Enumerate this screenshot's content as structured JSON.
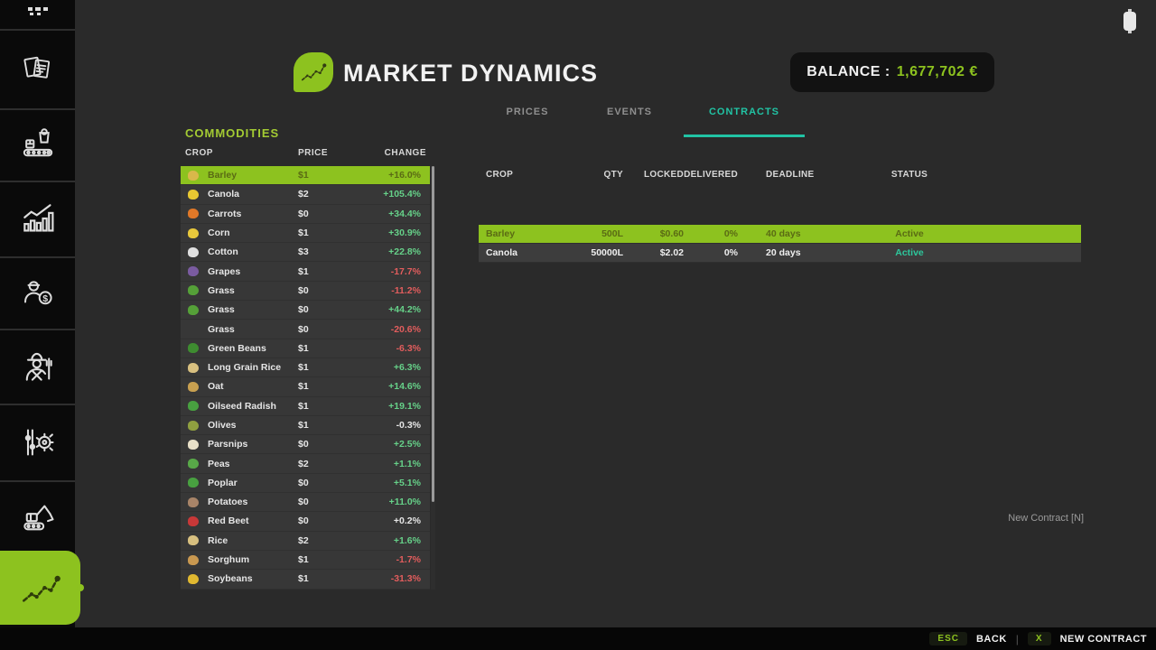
{
  "header": {
    "title": "MARKET DYNAMICS",
    "logo_icon": "leaf-chart-logo-icon",
    "balance_label": "BALANCE :",
    "balance_value": "1,677,702 €",
    "cursor_icon": "mouse-icon"
  },
  "tabs": [
    {
      "label": "PRICES",
      "active": false
    },
    {
      "label": "EVENTS",
      "active": false
    },
    {
      "label": "CONTRACTS",
      "active": true
    }
  ],
  "commodities": {
    "title": "COMMODITIES",
    "columns": [
      "CROP",
      "PRICE",
      "CHANGE"
    ],
    "rows": [
      {
        "crop": "Barley",
        "price": "$1",
        "change": "+16.0%",
        "dir": "up",
        "selected": true,
        "icon": "barley-icon",
        "icon_color": "#d9b84a"
      },
      {
        "crop": "Canola",
        "price": "$2",
        "change": "+105.4%",
        "dir": "up",
        "selected": false,
        "icon": "canola-icon",
        "icon_color": "#e8c832"
      },
      {
        "crop": "Carrots",
        "price": "$0",
        "change": "+34.4%",
        "dir": "up",
        "selected": false,
        "icon": "carrots-icon",
        "icon_color": "#e07828"
      },
      {
        "crop": "Corn",
        "price": "$1",
        "change": "+30.9%",
        "dir": "up",
        "selected": false,
        "icon": "corn-icon",
        "icon_color": "#e8c83c"
      },
      {
        "crop": "Cotton",
        "price": "$3",
        "change": "+22.8%",
        "dir": "up",
        "selected": false,
        "icon": "cotton-icon",
        "icon_color": "#e0e0e0"
      },
      {
        "crop": "Grapes",
        "price": "$1",
        "change": "-17.7%",
        "dir": "down",
        "selected": false,
        "icon": "grapes-icon",
        "icon_color": "#7a5ba0"
      },
      {
        "crop": "Grass",
        "price": "$0",
        "change": "-11.2%",
        "dir": "down",
        "selected": false,
        "icon": "grass-icon",
        "icon_color": "#55a038"
      },
      {
        "crop": "Grass",
        "price": "$0",
        "change": "+44.2%",
        "dir": "up",
        "selected": false,
        "icon": "grass-pile-icon",
        "icon_color": "#55a038"
      },
      {
        "crop": "Grass",
        "price": "$0",
        "change": "-20.6%",
        "dir": "down",
        "selected": false,
        "icon": "",
        "icon_color": ""
      },
      {
        "crop": "Green Beans",
        "price": "$1",
        "change": "-6.3%",
        "dir": "down",
        "selected": false,
        "icon": "green-beans-icon",
        "icon_color": "#3e8c30"
      },
      {
        "crop": "Long Grain Rice",
        "price": "$1",
        "change": "+6.3%",
        "dir": "up",
        "selected": false,
        "icon": "long-grain-rice-icon",
        "icon_color": "#d8c080"
      },
      {
        "crop": "Oat",
        "price": "$1",
        "change": "+14.6%",
        "dir": "up",
        "selected": false,
        "icon": "oat-icon",
        "icon_color": "#c8a050"
      },
      {
        "crop": "Oilseed Radish",
        "price": "$1",
        "change": "+19.1%",
        "dir": "up",
        "selected": false,
        "icon": "oilseed-radish-icon",
        "icon_color": "#48a040"
      },
      {
        "crop": "Olives",
        "price": "$1",
        "change": "-0.3%",
        "dir": "flat",
        "selected": false,
        "icon": "olives-icon",
        "icon_color": "#90a040"
      },
      {
        "crop": "Parsnips",
        "price": "$0",
        "change": "+2.5%",
        "dir": "up",
        "selected": false,
        "icon": "parsnips-icon",
        "icon_color": "#e8e0c8"
      },
      {
        "crop": "Peas",
        "price": "$2",
        "change": "+1.1%",
        "dir": "up",
        "selected": false,
        "icon": "peas-icon",
        "icon_color": "#58a848"
      },
      {
        "crop": "Poplar",
        "price": "$0",
        "change": "+5.1%",
        "dir": "up",
        "selected": false,
        "icon": "poplar-icon",
        "icon_color": "#48a040"
      },
      {
        "crop": "Potatoes",
        "price": "$0",
        "change": "+11.0%",
        "dir": "up",
        "selected": false,
        "icon": "potatoes-icon",
        "icon_color": "#a88468"
      },
      {
        "crop": "Red Beet",
        "price": "$0",
        "change": "+0.2%",
        "dir": "flat",
        "selected": false,
        "icon": "red-beet-icon",
        "icon_color": "#c83838"
      },
      {
        "crop": "Rice",
        "price": "$2",
        "change": "+1.6%",
        "dir": "up",
        "selected": false,
        "icon": "rice-icon",
        "icon_color": "#d8c080"
      },
      {
        "crop": "Sorghum",
        "price": "$1",
        "change": "-1.7%",
        "dir": "down",
        "selected": false,
        "icon": "sorghum-icon",
        "icon_color": "#c89850"
      },
      {
        "crop": "Soybeans",
        "price": "$1",
        "change": "-31.3%",
        "dir": "down",
        "selected": false,
        "icon": "soybeans-icon",
        "icon_color": "#e0b830"
      }
    ]
  },
  "contracts": {
    "columns": [
      "CROP",
      "QTY",
      "LOCKED",
      "DELIVERED",
      "DEADLINE",
      "STATUS"
    ],
    "rows": [
      {
        "crop": "Barley",
        "qty": "500L",
        "locked": "$0.60",
        "delivered": "0%",
        "deadline": "40 days",
        "status": "Active",
        "selected": true
      },
      {
        "crop": "Canola",
        "qty": "50000L",
        "locked": "$2.02",
        "delivered": "0%",
        "deadline": "20 days",
        "status": "Active",
        "selected": false
      }
    ],
    "new_contract_hint": "New Contract [N]"
  },
  "sidebar": {
    "items": [
      {
        "icon": "map-overview-icon",
        "active": false
      },
      {
        "icon": "documents-icon",
        "active": false
      },
      {
        "icon": "production-icon",
        "active": false
      },
      {
        "icon": "statistics-icon",
        "active": false
      },
      {
        "icon": "sales-icon",
        "active": false
      },
      {
        "icon": "farmer-icon",
        "active": false
      },
      {
        "icon": "settings-icon",
        "active": false
      },
      {
        "icon": "excavator-icon",
        "active": false
      },
      {
        "icon": "market-dynamics-icon",
        "active": true
      }
    ]
  },
  "footer": {
    "back_key": "ESC",
    "back_label": "BACK",
    "new_contract_key": "X",
    "new_contract_label": "NEW CONTRACT"
  },
  "colors": {
    "lime": "#8dc21f",
    "teal": "#21c3a4",
    "positive": "#66d189",
    "negative": "#e25d5d",
    "balance_value": "#8dc21f"
  }
}
